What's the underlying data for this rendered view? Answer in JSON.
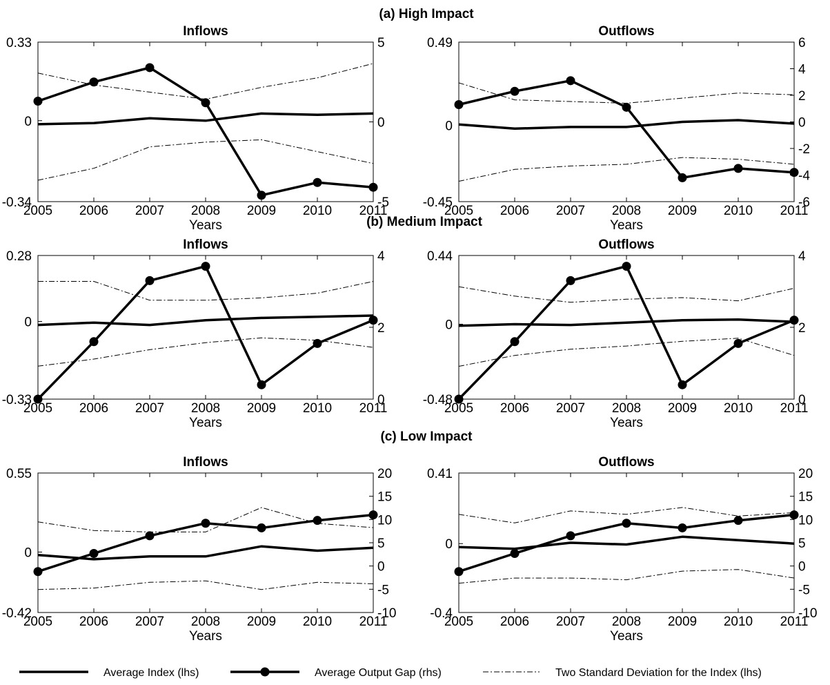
{
  "figure": {
    "panel_titles": [
      "(a) High Impact",
      "(b) Medium Impact",
      "(c) Low Impact"
    ],
    "legend": [
      {
        "label": "Average Index (lhs)",
        "style": "solid"
      },
      {
        "label": "Average Output Gap (rhs)",
        "style": "solid-marker"
      },
      {
        "label": "Two Standard Deviation for the Index (lhs)",
        "style": "dashdot"
      }
    ],
    "colors": {
      "line": "#000000",
      "background": "#ffffff"
    }
  },
  "chart_data": [
    {
      "type": "line",
      "panel": "(a) High Impact",
      "title": "Inflows",
      "xlabel": "Years",
      "x": [
        2005,
        2006,
        2007,
        2008,
        2009,
        2010,
        2011
      ],
      "ylim_left": [
        -0.34,
        0.33
      ],
      "yticks_left": [
        "-0.34",
        "0",
        "0.33"
      ],
      "ylim_right": [
        -5,
        5
      ],
      "yticks_right": [
        "-5",
        "0",
        "5"
      ],
      "series": [
        {
          "name": "Average Index (lhs)",
          "axis": "left",
          "values": [
            -0.015,
            -0.01,
            0.01,
            0.0,
            0.03,
            0.025,
            0.03
          ]
        },
        {
          "name": "Average Output Gap (rhs)",
          "axis": "right",
          "values": [
            1.3,
            2.5,
            3.4,
            1.2,
            -4.6,
            -3.8,
            -4.1
          ]
        },
        {
          "name": "Two Standard Deviation for the Index (lhs)",
          "axis": "left",
          "values": [
            0.2,
            0.15,
            0.12,
            0.09,
            0.14,
            0.18,
            0.24
          ]
        },
        {
          "name": "Two Standard Deviation for the Index (lhs)",
          "axis": "left",
          "values": [
            -0.25,
            -0.2,
            -0.11,
            -0.09,
            -0.08,
            -0.13,
            -0.18
          ]
        }
      ]
    },
    {
      "type": "line",
      "panel": "(a) High Impact",
      "title": "Outflows",
      "xlabel": "Years",
      "x": [
        2005,
        2006,
        2007,
        2008,
        2009,
        2010,
        2011
      ],
      "ylim_left": [
        -0.45,
        0.49
      ],
      "yticks_left": [
        "-0.45",
        "0",
        "0.49"
      ],
      "ylim_right": [
        -6,
        6
      ],
      "yticks_right": [
        "-6",
        "-4",
        "-2",
        "0",
        "2",
        "4",
        "6"
      ],
      "series": [
        {
          "name": "Average Index (lhs)",
          "axis": "left",
          "values": [
            0.005,
            -0.02,
            -0.01,
            -0.01,
            0.02,
            0.03,
            0.01
          ]
        },
        {
          "name": "Average Output Gap (rhs)",
          "axis": "right",
          "values": [
            1.3,
            2.3,
            3.1,
            1.1,
            -4.2,
            -3.5,
            -3.8
          ]
        },
        {
          "name": "Two Standard Deviation for the Index (lhs)",
          "axis": "left",
          "values": [
            0.25,
            0.15,
            0.14,
            0.13,
            0.16,
            0.19,
            0.18
          ]
        },
        {
          "name": "Two Standard Deviation for the Index (lhs)",
          "axis": "left",
          "values": [
            -0.33,
            -0.26,
            -0.24,
            -0.23,
            -0.19,
            -0.2,
            -0.23
          ]
        }
      ]
    },
    {
      "type": "line",
      "panel": "(b) Medium Impact",
      "title": "Inflows",
      "xlabel": "Years",
      "x": [
        2005,
        2006,
        2007,
        2008,
        2009,
        2010,
        2011
      ],
      "ylim_left": [
        -0.33,
        0.28
      ],
      "yticks_left": [
        "-0.33",
        "0",
        "0.28"
      ],
      "ylim_right": [
        0,
        4
      ],
      "yticks_right": [
        "0",
        "2",
        "4"
      ],
      "series": [
        {
          "name": "Average Index (lhs)",
          "axis": "left",
          "values": [
            -0.015,
            -0.005,
            -0.015,
            0.005,
            0.015,
            0.02,
            0.025
          ]
        },
        {
          "name": "Average Output Gap (rhs)",
          "axis": "right",
          "values": [
            0.0,
            1.6,
            3.3,
            3.7,
            0.4,
            1.55,
            2.2
          ]
        },
        {
          "name": "Two Standard Deviation for the Index (lhs)",
          "axis": "left",
          "values": [
            0.17,
            0.17,
            0.09,
            0.09,
            0.1,
            0.12,
            0.17
          ]
        },
        {
          "name": "Two Standard Deviation for the Index (lhs)",
          "axis": "left",
          "values": [
            -0.19,
            -0.16,
            -0.12,
            -0.09,
            -0.07,
            -0.08,
            -0.11
          ]
        }
      ]
    },
    {
      "type": "line",
      "panel": "(b) Medium Impact",
      "title": "Outflows",
      "xlabel": "Years",
      "x": [
        2005,
        2006,
        2007,
        2008,
        2009,
        2010,
        2011
      ],
      "ylim_left": [
        -0.48,
        0.44
      ],
      "yticks_left": [
        "-0.48",
        "0",
        "0.44"
      ],
      "ylim_right": [
        0,
        4
      ],
      "yticks_right": [
        "0",
        "2",
        "4"
      ],
      "series": [
        {
          "name": "Average Index (lhs)",
          "axis": "left",
          "values": [
            -0.01,
            0.0,
            -0.005,
            0.01,
            0.025,
            0.03,
            0.015
          ]
        },
        {
          "name": "Average Output Gap (rhs)",
          "axis": "right",
          "values": [
            0.0,
            1.6,
            3.3,
            3.7,
            0.4,
            1.55,
            2.2
          ]
        },
        {
          "name": "Two Standard Deviation for the Index (lhs)",
          "axis": "left",
          "values": [
            0.24,
            0.18,
            0.14,
            0.16,
            0.17,
            0.15,
            0.23
          ]
        },
        {
          "name": "Two Standard Deviation for the Index (lhs)",
          "axis": "left",
          "values": [
            -0.27,
            -0.2,
            -0.16,
            -0.14,
            -0.11,
            -0.09,
            -0.2
          ]
        }
      ]
    },
    {
      "type": "line",
      "panel": "(c) Low Impact",
      "title": "Inflows",
      "xlabel": "Years",
      "x": [
        2005,
        2006,
        2007,
        2008,
        2009,
        2010,
        2011
      ],
      "ylim_left": [
        -0.42,
        0.55
      ],
      "yticks_left": [
        "-0.42",
        "0",
        "0.55"
      ],
      "ylim_right": [
        -10,
        20
      ],
      "yticks_right": [
        "-10",
        "-5",
        "0",
        "5",
        "10",
        "15",
        "20"
      ],
      "series": [
        {
          "name": "Average Index (lhs)",
          "axis": "left",
          "values": [
            -0.02,
            -0.05,
            -0.03,
            -0.03,
            0.04,
            0.01,
            0.03
          ]
        },
        {
          "name": "Average Output Gap (rhs)",
          "axis": "right",
          "values": [
            -1.2,
            2.7,
            6.5,
            9.2,
            8.2,
            9.8,
            11.0
          ]
        },
        {
          "name": "Two Standard Deviation for the Index (lhs)",
          "axis": "left",
          "values": [
            0.21,
            0.15,
            0.14,
            0.14,
            0.31,
            0.2,
            0.17
          ]
        },
        {
          "name": "Two Standard Deviation for the Index (lhs)",
          "axis": "left",
          "values": [
            -0.26,
            -0.25,
            -0.21,
            -0.2,
            -0.26,
            -0.21,
            -0.22
          ]
        }
      ]
    },
    {
      "type": "line",
      "panel": "(c) Low Impact",
      "title": "Outflows",
      "xlabel": "Years",
      "x": [
        2005,
        2006,
        2007,
        2008,
        2009,
        2010,
        2011
      ],
      "ylim_left": [
        -0.4,
        0.41
      ],
      "yticks_left": [
        "-0.4",
        "0",
        "0.41"
      ],
      "ylim_right": [
        -10,
        20
      ],
      "yticks_right": [
        "-10",
        "-5",
        "0",
        "5",
        "10",
        "15",
        "20"
      ],
      "series": [
        {
          "name": "Average Index (lhs)",
          "axis": "left",
          "values": [
            -0.02,
            -0.03,
            0.005,
            -0.005,
            0.04,
            0.02,
            0.0
          ]
        },
        {
          "name": "Average Output Gap (rhs)",
          "axis": "right",
          "values": [
            -1.2,
            2.7,
            6.5,
            9.2,
            8.2,
            9.8,
            11.0
          ]
        },
        {
          "name": "Two Standard Deviation for the Index (lhs)",
          "axis": "left",
          "values": [
            0.17,
            0.12,
            0.19,
            0.17,
            0.21,
            0.16,
            0.18
          ]
        },
        {
          "name": "Two Standard Deviation for the Index (lhs)",
          "axis": "left",
          "values": [
            -0.23,
            -0.2,
            -0.2,
            -0.21,
            -0.16,
            -0.15,
            -0.2
          ]
        }
      ]
    }
  ]
}
